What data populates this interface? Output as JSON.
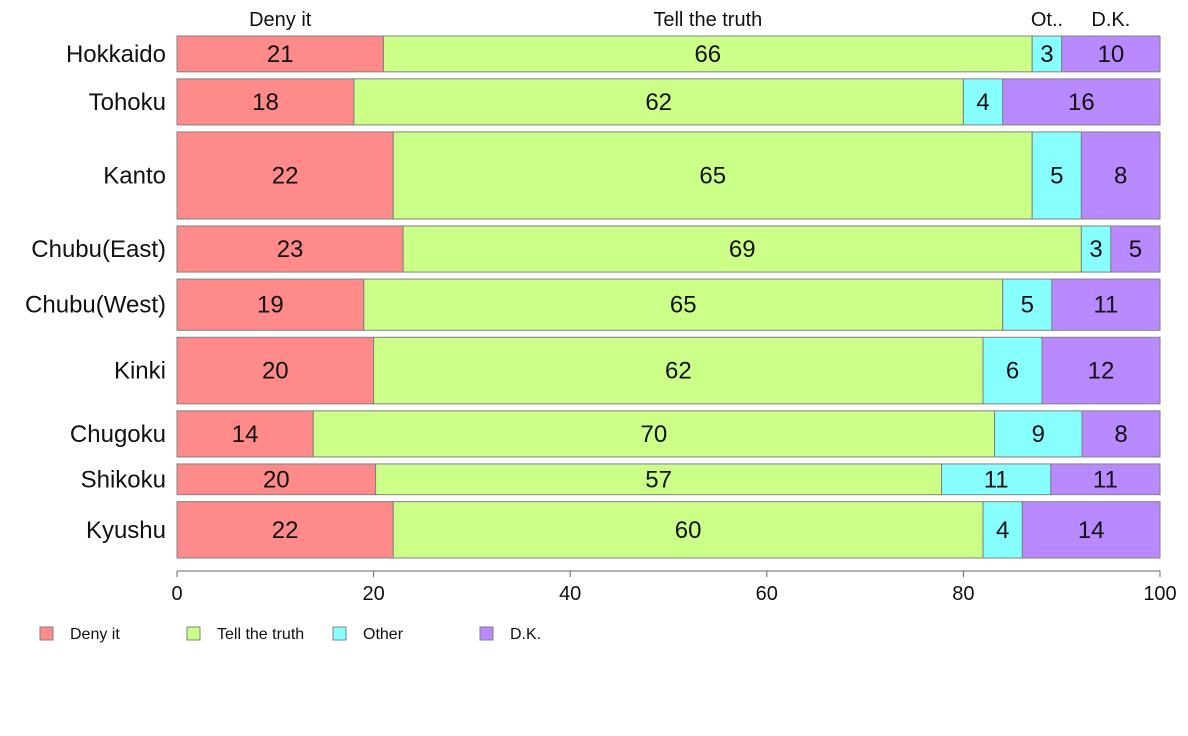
{
  "chart_data": {
    "type": "bar",
    "orientation": "horizontal",
    "stacked": true,
    "categories": [
      "Hokkaido",
      "Tohoku",
      "Kanto",
      "Chubu(East)",
      "Chubu(West)",
      "Kinki",
      "Chugoku",
      "Shikoku",
      "Kyushu"
    ],
    "series": [
      {
        "name": "Deny it",
        "color": "#ff8a8a",
        "values": [
          21,
          18,
          22,
          23,
          19,
          20,
          14,
          20,
          22
        ]
      },
      {
        "name": "Tell the truth",
        "color": "#ccff88",
        "values": [
          66,
          62,
          65,
          69,
          65,
          62,
          70,
          57,
          60
        ]
      },
      {
        "name": "Other",
        "color": "#88ffff",
        "values": [
          3,
          4,
          5,
          3,
          5,
          6,
          9,
          11,
          4
        ]
      },
      {
        "name": "D.K.",
        "color": "#b98aff",
        "values": [
          10,
          16,
          8,
          5,
          11,
          12,
          8,
          11,
          14
        ]
      }
    ],
    "row_weights": [
      7,
      9,
      17,
      9,
      10,
      13,
      9,
      6,
      11
    ],
    "top_labels": [
      "Deny it",
      "Tell the truth",
      "Ot..",
      "D.K."
    ],
    "xlim": [
      0,
      100
    ],
    "xticks": [
      "0",
      "20",
      "40",
      "60",
      "80",
      "100"
    ],
    "legend": {
      "position": "bottom-left",
      "entries": [
        "Deny it",
        "Tell the truth",
        "Other",
        "D.K."
      ]
    },
    "grid": false,
    "title": "",
    "xlabel": "",
    "ylabel": ""
  }
}
